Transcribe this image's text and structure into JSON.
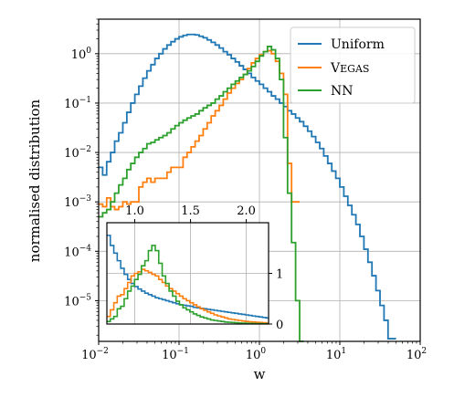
{
  "chart_data": [
    {
      "type": "line",
      "drawstyle": "steps",
      "xscale": "log",
      "yscale": "log",
      "xlim": [
        0.01,
        100
      ],
      "ylim": [
        1.5e-06,
        5
      ],
      "xlabel": "w",
      "ylabel": "normalised distribution",
      "grid": true,
      "legend": "top-right",
      "x_ticks": [
        0.01,
        0.1,
        1,
        10,
        100
      ],
      "y_ticks": [
        1e-05,
        0.0001,
        0.001,
        0.01,
        0.1,
        1
      ],
      "x_tick_labels": [
        {
          "base": "10",
          "exp": "−2"
        },
        {
          "base": "10",
          "exp": "−1"
        },
        {
          "base": "10",
          "exp": "0"
        },
        {
          "base": "10",
          "exp": "1"
        },
        {
          "base": "10",
          "exp": "2"
        }
      ],
      "y_tick_labels": [
        {
          "base": "10",
          "exp": "−5"
        },
        {
          "base": "10",
          "exp": "−4"
        },
        {
          "base": "10",
          "exp": "−3"
        },
        {
          "base": "10",
          "exp": "−2"
        },
        {
          "base": "10",
          "exp": "−1"
        },
        {
          "base": "10",
          "exp": "0"
        }
      ],
      "series": [
        {
          "name": "Uniform",
          "color": "#1f77b4",
          "x": [
            0.01,
            0.0112,
            0.0126,
            0.0141,
            0.0158,
            0.0178,
            0.02,
            0.0224,
            0.0251,
            0.0282,
            0.0316,
            0.0355,
            0.0398,
            0.0447,
            0.0501,
            0.0562,
            0.0631,
            0.0708,
            0.0794,
            0.0891,
            0.1,
            0.1122,
            0.1259,
            0.1413,
            0.1585,
            0.1778,
            0.1995,
            0.2239,
            0.2512,
            0.2818,
            0.3162,
            0.3548,
            0.3981,
            0.4467,
            0.5012,
            0.5623,
            0.631,
            0.7079,
            0.7943,
            0.8913,
            1.0,
            1.122,
            1.2589,
            1.4125,
            1.5849,
            1.7783,
            1.9953,
            2.2387,
            2.5119,
            2.8184,
            3.1623,
            3.5481,
            3.9811,
            4.4668,
            5.0119,
            5.6234,
            6.3096,
            7.0795,
            7.9433,
            8.9125,
            10.0,
            11.2202,
            12.5893,
            14.1254,
            15.8489,
            17.7828,
            19.9526,
            22.3872,
            25.1189,
            28.1838,
            31.6228,
            35.4813,
            39.8107,
            44.6684
          ],
          "y": [
            0.005,
            0.0035,
            0.0065,
            0.01,
            0.017,
            0.025,
            0.04,
            0.065,
            0.1,
            0.15,
            0.22,
            0.32,
            0.45,
            0.6,
            0.8,
            1.0,
            1.25,
            1.5,
            1.75,
            2.0,
            2.2,
            2.35,
            2.45,
            2.45,
            2.4,
            2.25,
            2.1,
            1.9,
            1.7,
            1.5,
            1.3,
            1.1,
            0.95,
            0.8,
            0.68,
            0.57,
            0.48,
            0.4,
            0.33,
            0.28,
            0.24,
            0.2,
            0.17,
            0.14,
            0.12,
            0.1,
            0.085,
            0.07,
            0.06,
            0.05,
            0.042,
            0.034,
            0.027,
            0.021,
            0.016,
            0.012,
            0.0085,
            0.006,
            0.0042,
            0.003,
            0.002,
            0.0013,
            0.00085,
            0.00055,
            0.00035,
            0.0002,
            0.00011,
            6e-05,
            3.2e-05,
            1.6e-05,
            8e-06,
            4e-06,
            1.7e-06,
            1.7e-06
          ]
        },
        {
          "name": "Vegas",
          "color": "#ff7f0e",
          "x": [
            0.01,
            0.0112,
            0.0126,
            0.0141,
            0.0158,
            0.0178,
            0.02,
            0.0224,
            0.0251,
            0.0282,
            0.0316,
            0.0355,
            0.0398,
            0.0447,
            0.0501,
            0.0562,
            0.0631,
            0.0708,
            0.0794,
            0.0891,
            0.1,
            0.1122,
            0.1259,
            0.1413,
            0.1585,
            0.1778,
            0.1995,
            0.2239,
            0.2512,
            0.2818,
            0.3162,
            0.3548,
            0.3981,
            0.4467,
            0.5012,
            0.5623,
            0.631,
            0.7079,
            0.7943,
            0.8913,
            1.0,
            1.122,
            1.2589,
            1.4125,
            1.5849,
            1.7783,
            1.9953,
            2.2387,
            2.5119,
            2.8184
          ],
          "y": [
            0.0009,
            0.0008,
            0.0012,
            0.0008,
            0.0007,
            0.0008,
            0.001,
            0.0009,
            0.001,
            0.001,
            0.002,
            0.0025,
            0.003,
            0.0025,
            0.003,
            0.003,
            0.003,
            0.004,
            0.005,
            0.005,
            0.005,
            0.008,
            0.01,
            0.013,
            0.017,
            0.022,
            0.03,
            0.04,
            0.055,
            0.07,
            0.09,
            0.12,
            0.16,
            0.2,
            0.25,
            0.3,
            0.38,
            0.5,
            0.65,
            0.8,
            0.95,
            1.1,
            1.15,
            1.0,
            0.7,
            0.4,
            0.15,
            0.006,
            0.001,
            0.001
          ]
        },
        {
          "name": "NN",
          "color": "#2ca02c",
          "x": [
            0.01,
            0.0112,
            0.0126,
            0.0141,
            0.0158,
            0.0178,
            0.02,
            0.0224,
            0.0251,
            0.0282,
            0.0316,
            0.0355,
            0.0398,
            0.0447,
            0.0501,
            0.0562,
            0.0631,
            0.0708,
            0.0794,
            0.0891,
            0.1,
            0.1122,
            0.1259,
            0.1413,
            0.1585,
            0.1778,
            0.1995,
            0.2239,
            0.2512,
            0.2818,
            0.3162,
            0.3548,
            0.3981,
            0.4467,
            0.5012,
            0.5623,
            0.631,
            0.7079,
            0.7943,
            0.8913,
            1.0,
            1.122,
            1.2589,
            1.4125,
            1.5849,
            1.7783,
            1.9953,
            2.2387,
            2.5119,
            2.8184,
            3.1623
          ],
          "y": [
            0.0005,
            0.0006,
            0.0007,
            0.001,
            0.0015,
            0.0022,
            0.003,
            0.0045,
            0.006,
            0.008,
            0.01,
            0.012,
            0.015,
            0.016,
            0.018,
            0.02,
            0.022,
            0.025,
            0.03,
            0.035,
            0.04,
            0.045,
            0.05,
            0.055,
            0.06,
            0.07,
            0.08,
            0.09,
            0.1,
            0.12,
            0.14,
            0.17,
            0.2,
            0.24,
            0.28,
            0.33,
            0.38,
            0.45,
            0.55,
            0.7,
            0.9,
            1.1,
            1.4,
            1.2,
            0.8,
            0.3,
            0.02,
            0.0015,
            0.00015,
            1e-05,
            1.5e-06
          ]
        }
      ]
    },
    {
      "type": "line",
      "drawstyle": "steps",
      "role": "inset",
      "xscale": "linear",
      "yscale": "linear",
      "xlim": [
        0.75,
        2.2
      ],
      "ylim": [
        0,
        2.0
      ],
      "grid": true,
      "x_ticks": [
        1.0,
        1.5,
        2.0
      ],
      "x_tick_labels": [
        "1.0",
        "1.5",
        "2.0"
      ],
      "y_ticks": [
        0,
        1
      ],
      "y_tick_labels": [
        "0",
        "1"
      ],
      "series": [
        {
          "name": "Uniform",
          "color": "#1f77b4",
          "x": [
            0.75,
            0.781,
            0.812,
            0.843,
            0.874,
            0.905,
            0.936,
            0.967,
            0.998,
            1.029,
            1.06,
            1.091,
            1.122,
            1.153,
            1.184,
            1.215,
            1.246,
            1.277,
            1.308,
            1.339,
            1.37,
            1.401,
            1.432,
            1.463,
            1.494,
            1.525,
            1.556,
            1.587,
            1.618,
            1.649,
            1.68,
            1.711,
            1.742,
            1.773,
            1.804,
            1.835,
            1.866,
            1.897,
            1.928,
            1.959,
            1.99,
            2.021,
            2.052,
            2.083,
            2.114,
            2.145,
            2.176
          ],
          "y": [
            1.75,
            1.55,
            1.4,
            1.25,
            1.1,
            0.98,
            0.88,
            0.8,
            0.74,
            0.69,
            0.65,
            0.61,
            0.58,
            0.55,
            0.52,
            0.5,
            0.48,
            0.46,
            0.44,
            0.42,
            0.4,
            0.38,
            0.37,
            0.36,
            0.35,
            0.33,
            0.32,
            0.31,
            0.3,
            0.29,
            0.28,
            0.27,
            0.26,
            0.25,
            0.24,
            0.23,
            0.22,
            0.21,
            0.2,
            0.19,
            0.18,
            0.17,
            0.16,
            0.15,
            0.14,
            0.13,
            0.12
          ]
        },
        {
          "name": "Vegas",
          "color": "#ff7f0e",
          "x": [
            0.75,
            0.781,
            0.812,
            0.843,
            0.874,
            0.905,
            0.936,
            0.967,
            0.998,
            1.029,
            1.06,
            1.091,
            1.122,
            1.153,
            1.184,
            1.215,
            1.246,
            1.277,
            1.308,
            1.339,
            1.37,
            1.401,
            1.432,
            1.463,
            1.494,
            1.525,
            1.556,
            1.587,
            1.618,
            1.649,
            1.68,
            1.711,
            1.742,
            1.773,
            1.804,
            1.835,
            1.866,
            1.897,
            1.928,
            1.959,
            1.99,
            2.021,
            2.052,
            2.083,
            2.114,
            2.145,
            2.176
          ],
          "y": [
            0.15,
            0.28,
            0.42,
            0.55,
            0.58,
            0.7,
            0.82,
            0.95,
            1.0,
            1.03,
            1.08,
            1.05,
            1.02,
            0.98,
            0.95,
            0.88,
            0.82,
            0.75,
            0.7,
            0.65,
            0.6,
            0.55,
            0.5,
            0.46,
            0.42,
            0.38,
            0.34,
            0.3,
            0.27,
            0.24,
            0.21,
            0.18,
            0.16,
            0.14,
            0.12,
            0.1,
            0.09,
            0.08,
            0.07,
            0.06,
            0.05,
            0.045,
            0.04,
            0.035,
            0.03,
            0.025,
            0.02
          ]
        },
        {
          "name": "NN",
          "color": "#2ca02c",
          "x": [
            0.75,
            0.781,
            0.812,
            0.843,
            0.874,
            0.905,
            0.936,
            0.967,
            0.998,
            1.029,
            1.06,
            1.091,
            1.122,
            1.153,
            1.184,
            1.215,
            1.246,
            1.277,
            1.308,
            1.339,
            1.37,
            1.401,
            1.432,
            1.463,
            1.494,
            1.525,
            1.556,
            1.587,
            1.618,
            1.649,
            1.68,
            1.711,
            1.742,
            1.773,
            1.804,
            1.835,
            1.866,
            1.897,
            1.928,
            1.959,
            1.99,
            2.021,
            2.052,
            2.083,
            2.114,
            2.145,
            2.176
          ],
          "y": [
            0.05,
            0.1,
            0.15,
            0.3,
            0.35,
            0.5,
            0.65,
            0.75,
            0.88,
            0.98,
            1.15,
            1.25,
            1.45,
            1.55,
            1.45,
            1.2,
            0.95,
            0.8,
            0.65,
            0.55,
            0.45,
            0.38,
            0.32,
            0.28,
            0.24,
            0.2,
            0.17,
            0.14,
            0.12,
            0.1,
            0.08,
            0.07,
            0.06,
            0.05,
            0.04,
            0.035,
            0.03,
            0.025,
            0.02,
            0.017,
            0.015,
            0.012,
            0.01,
            0.008,
            0.007,
            0.006,
            0.005
          ]
        }
      ]
    }
  ],
  "legend": {
    "items": [
      {
        "label": "Uniform",
        "color": "#1f77b4"
      },
      {
        "label": "Vegas",
        "color": "#ff7f0e",
        "smallcaps": true
      },
      {
        "label": "NN",
        "color": "#2ca02c"
      }
    ]
  }
}
